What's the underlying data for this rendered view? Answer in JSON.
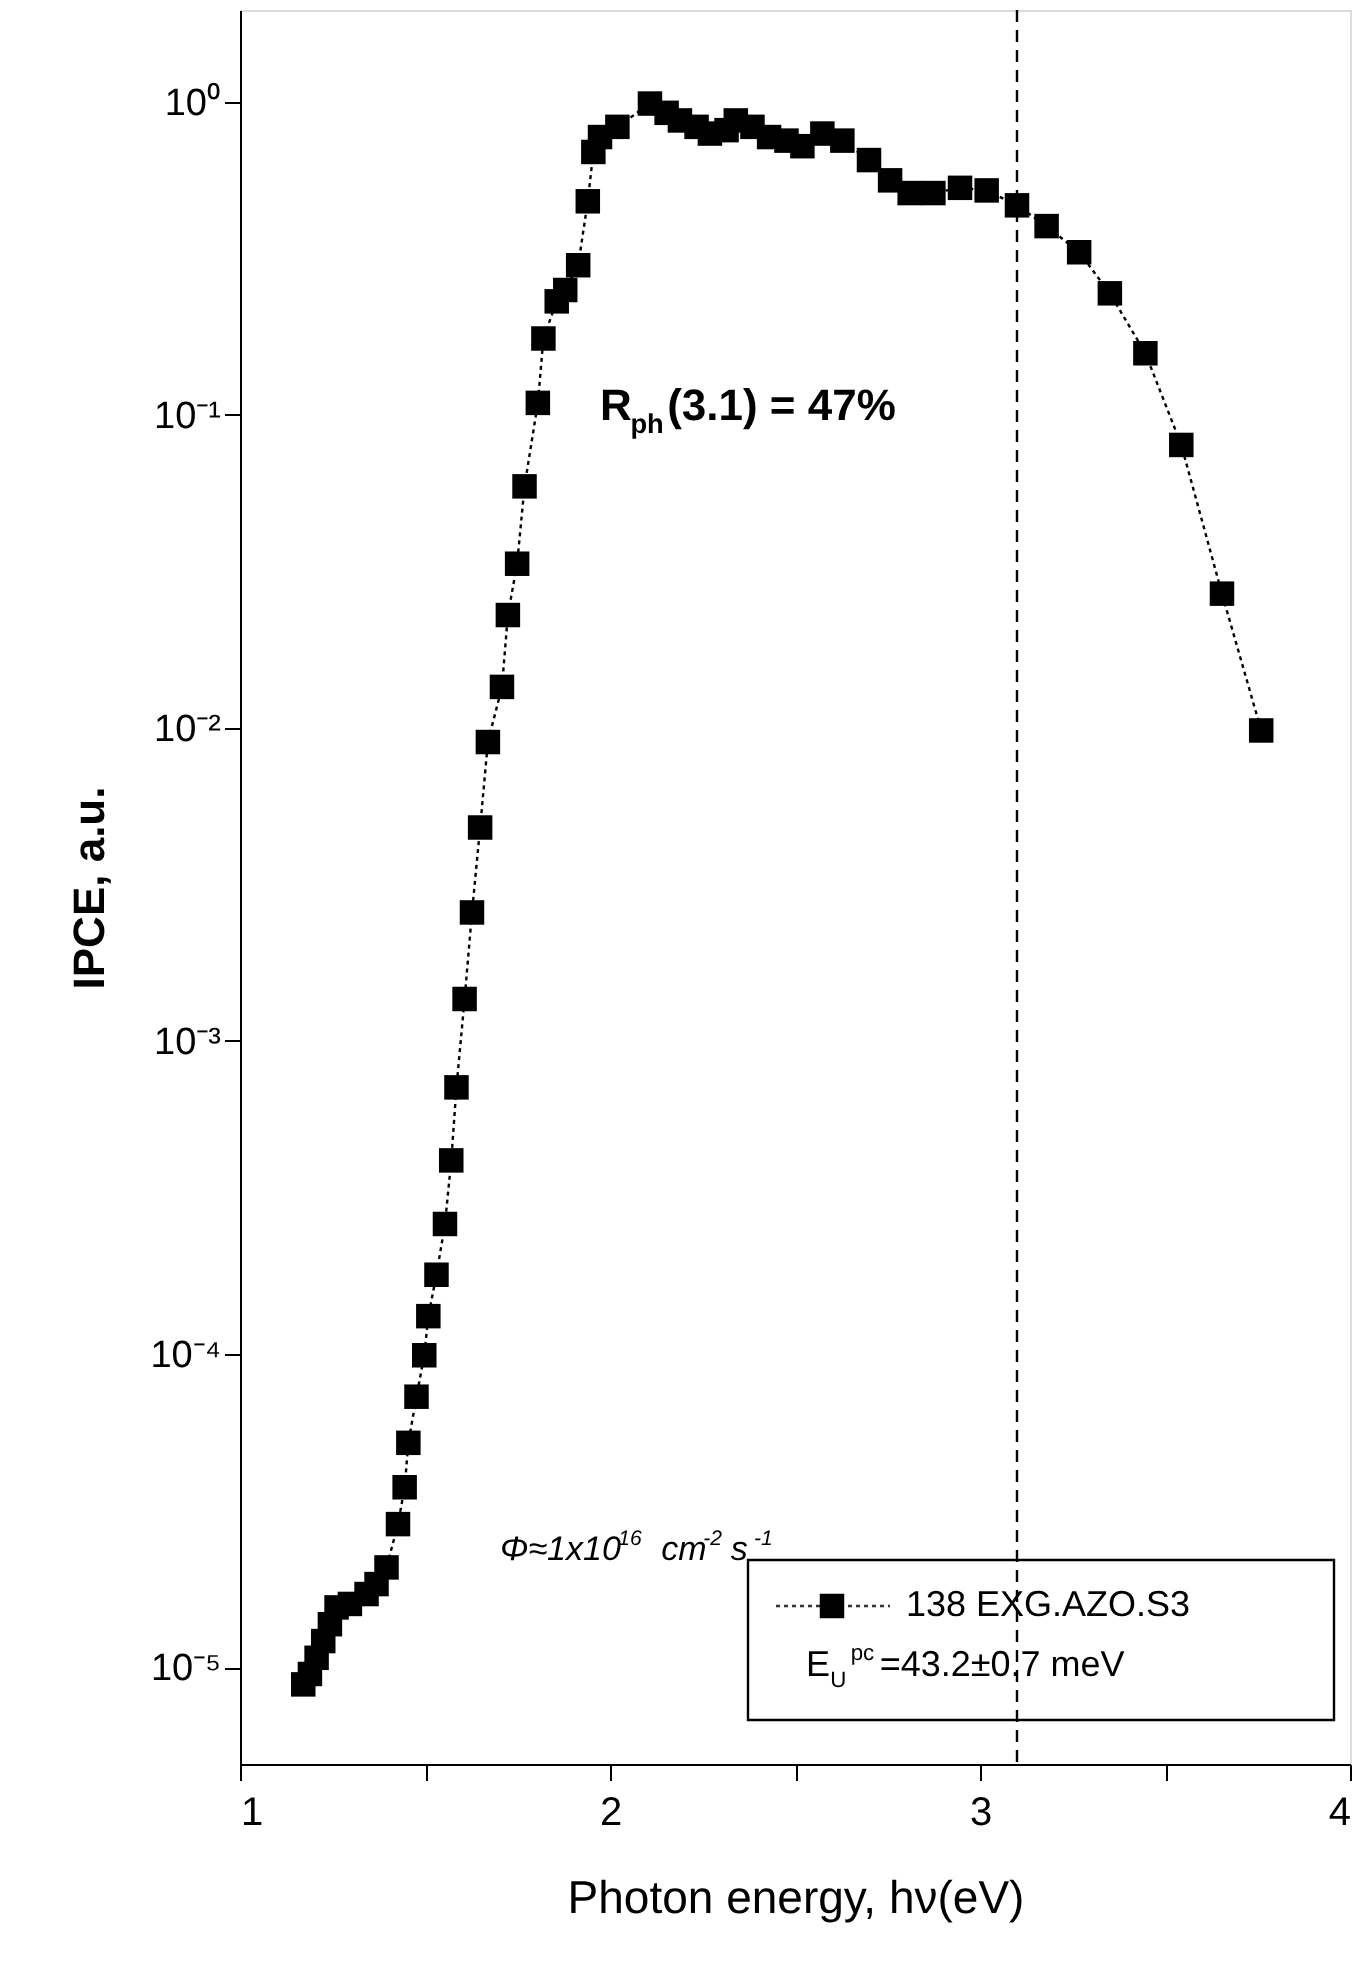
{
  "chart_data": {
    "type": "line",
    "xlabel": "Photon energy, hν(eV)",
    "ylabel": "IPCE, a.u.",
    "xlim": [
      1,
      4
    ],
    "xticks": [
      1,
      {
        "value": 1.5,
        "label": null
      },
      2,
      {
        "value": 2.5,
        "label": null
      },
      3,
      {
        "value": 3.5,
        "label": null
      },
      4
    ],
    "ylim": [
      4.9e-06,
      1.96
    ],
    "yticks": [
      {
        "value": 1e-05,
        "label": "10⁻⁵"
      },
      {
        "value": 0.0001,
        "label": "10⁻⁴"
      },
      {
        "value": 0.001,
        "label": "10⁻³"
      },
      {
        "value": 0.01,
        "label": "10⁻²"
      },
      {
        "value": 0.1,
        "label": "10⁻¹"
      },
      {
        "value": 1,
        "label": "10⁰"
      }
    ],
    "log": "y",
    "grid": false,
    "legend": "bottom right",
    "marker": "square",
    "line_style": "dotted",
    "series": [
      {
        "name": "138 EXG.AZO.S3",
        "color": "#000000",
        "x": [
          1.171,
          1.189,
          1.207,
          1.225,
          1.243,
          1.261,
          1.297,
          1.342,
          1.369,
          1.396,
          1.427,
          1.445,
          1.455,
          1.477,
          1.498,
          1.509,
          1.531,
          1.554,
          1.571,
          1.585,
          1.607,
          1.627,
          1.649,
          1.67,
          1.708,
          1.724,
          1.749,
          1.769,
          1.805,
          1.82,
          1.856,
          1.879,
          1.914,
          1.94,
          1.955,
          1.973,
          2.02,
          2.108,
          2.153,
          2.189,
          2.234,
          2.27,
          2.315,
          2.34,
          2.385,
          2.43,
          2.477,
          2.52,
          2.574,
          2.628,
          2.7,
          2.757,
          2.81,
          2.874,
          2.946,
          3.018,
          3.1,
          3.18,
          3.268,
          3.351,
          3.447,
          3.544,
          3.654,
          3.76
        ],
        "values": [
          8.8e-06,
          9.5e-06,
          1.07e-05,
          1.21e-05,
          1.37e-05,
          1.55e-05,
          1.59e-05,
          1.71e-05,
          1.84e-05,
          2.08e-05,
          2.86e-05,
          3.75e-05,
          5.2e-05,
          7.3e-05,
          9.9e-05,
          0.000132,
          0.000179,
          0.00026,
          0.000415,
          0.00071,
          0.00136,
          0.00257,
          0.0048,
          0.009,
          0.0135,
          0.0229,
          0.0334,
          0.059,
          0.109,
          0.175,
          0.23,
          0.25,
          0.3,
          0.48,
          0.69,
          0.77,
          0.83,
          0.985,
          0.92,
          0.87,
          0.83,
          0.79,
          0.81,
          0.87,
          0.83,
          0.77,
          0.75,
          0.72,
          0.79,
          0.75,
          0.65,
          0.56,
          0.51,
          0.51,
          0.53,
          0.52,
          0.466,
          0.4,
          0.33,
          0.244,
          0.157,
          0.08,
          0.0268,
          0.0098
        ]
      }
    ],
    "ref_lines": [
      {
        "axis": "x",
        "value": 3.1,
        "line_style": "dashed",
        "color": "#000000"
      }
    ],
    "annotations": [
      "R$_{ph}$(3.1) = 47%",
      "Φ≈1x10$^{16}$ cm$^{-2}$s$^{-1}$",
      "E$_{U}$$^{pc}$=43.2±0.7 meV"
    ]
  }
}
